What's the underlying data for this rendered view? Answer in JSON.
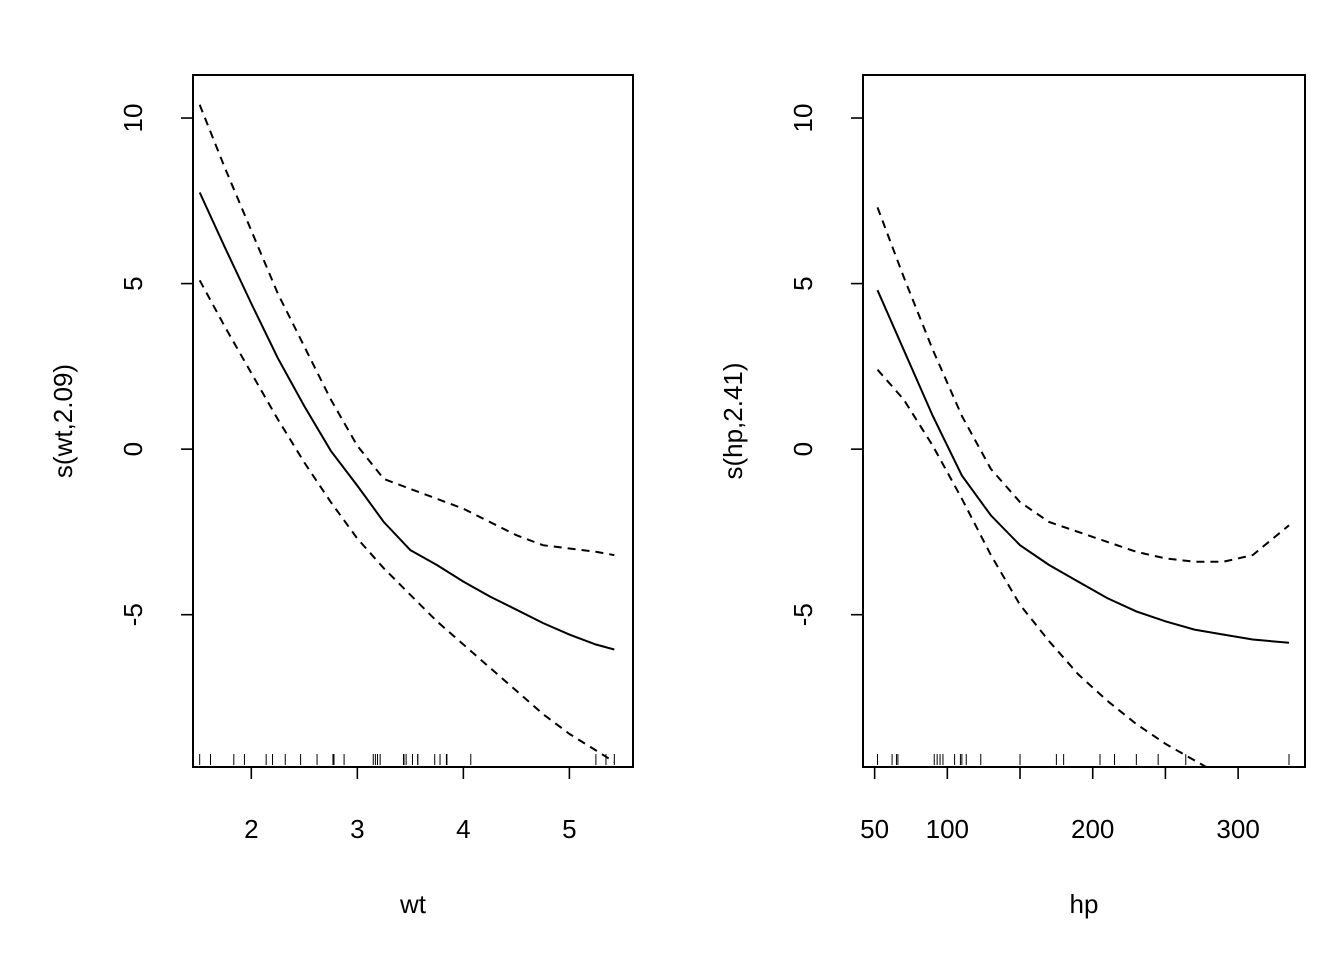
{
  "chart_data": [
    {
      "type": "line",
      "xlabel": "wt",
      "ylabel": "s(wt,2.09)",
      "xlim": [
        1.45,
        5.6
      ],
      "ylim": [
        -9.6,
        11.3
      ],
      "xticks": [
        2,
        3,
        4,
        5
      ],
      "yticks": [
        10,
        5,
        0,
        -5
      ],
      "ytick_labels": [
        "10",
        "5",
        "0",
        "-5"
      ],
      "grid": false,
      "series": [
        {
          "role": "fit",
          "style": "solid",
          "x": [
            1.513,
            1.75,
            2.0,
            2.25,
            2.5,
            2.75,
            3.0,
            3.25,
            3.5,
            3.75,
            4.0,
            4.25,
            4.5,
            4.75,
            5.0,
            5.25,
            5.424
          ],
          "y": [
            7.75,
            6.1,
            4.4,
            2.75,
            1.3,
            -0.05,
            -1.1,
            -2.2,
            -3.05,
            -3.5,
            -4.0,
            -4.45,
            -4.85,
            -5.25,
            -5.6,
            -5.9,
            -6.05
          ]
        },
        {
          "role": "upper",
          "style": "dashed",
          "x": [
            1.513,
            1.75,
            2.0,
            2.25,
            2.5,
            2.75,
            3.0,
            3.25,
            3.5,
            3.75,
            4.0,
            4.25,
            4.5,
            4.75,
            5.0,
            5.25,
            5.424
          ],
          "y": [
            10.4,
            8.5,
            6.6,
            4.7,
            3.1,
            1.5,
            0.1,
            -0.9,
            -1.2,
            -1.5,
            -1.8,
            -2.2,
            -2.6,
            -2.9,
            -3.0,
            -3.1,
            -3.2
          ]
        },
        {
          "role": "lower",
          "style": "dashed",
          "x": [
            1.513,
            1.75,
            2.0,
            2.25,
            2.5,
            2.75,
            3.0,
            3.25,
            3.5,
            3.75,
            4.0,
            4.25,
            4.5,
            4.75,
            5.0,
            5.25,
            5.424
          ],
          "y": [
            5.1,
            3.7,
            2.3,
            0.9,
            -0.4,
            -1.6,
            -2.7,
            -3.6,
            -4.4,
            -5.2,
            -5.9,
            -6.6,
            -7.3,
            -8.0,
            -8.6,
            -9.1,
            -9.45
          ]
        }
      ],
      "rug": [
        1.513,
        1.615,
        1.835,
        1.935,
        2.14,
        2.2,
        2.32,
        2.465,
        2.62,
        2.77,
        2.78,
        2.875,
        3.15,
        3.17,
        3.19,
        3.215,
        3.435,
        3.44,
        3.44,
        3.44,
        3.46,
        3.52,
        3.57,
        3.57,
        3.73,
        3.78,
        3.84,
        3.845,
        4.07,
        5.25,
        5.345,
        5.424
      ]
    },
    {
      "type": "line",
      "xlabel": "hp",
      "ylabel": "s(hp,2.41)",
      "xlim": [
        42,
        346
      ],
      "ylim": [
        -9.6,
        11.3
      ],
      "xticks": [
        50,
        100,
        150,
        200,
        250,
        300
      ],
      "xtick_labels": [
        "50",
        "100",
        "",
        "200",
        "",
        "300"
      ],
      "yticks": [
        10,
        5,
        0,
        -5
      ],
      "ytick_labels": [
        "10",
        "5",
        "0",
        "-5"
      ],
      "grid": false,
      "series": [
        {
          "role": "fit",
          "style": "solid",
          "x": [
            52,
            70,
            90,
            110,
            130,
            150,
            170,
            190,
            210,
            230,
            250,
            270,
            290,
            310,
            335
          ],
          "y": [
            4.8,
            3.0,
            1.0,
            -0.8,
            -2.0,
            -2.9,
            -3.5,
            -4.0,
            -4.5,
            -4.9,
            -5.2,
            -5.45,
            -5.6,
            -5.75,
            -5.85
          ]
        },
        {
          "role": "upper",
          "style": "dashed",
          "x": [
            52,
            70,
            90,
            110,
            130,
            150,
            170,
            190,
            210,
            230,
            250,
            270,
            290,
            310,
            335
          ],
          "y": [
            7.3,
            5.2,
            3.0,
            1.0,
            -0.6,
            -1.6,
            -2.2,
            -2.5,
            -2.8,
            -3.1,
            -3.3,
            -3.4,
            -3.4,
            -3.2,
            -2.3
          ]
        },
        {
          "role": "lower",
          "style": "dashed",
          "x": [
            52,
            70,
            90,
            110,
            130,
            150,
            170,
            190,
            210,
            230,
            250,
            270,
            290,
            310,
            335
          ],
          "y": [
            2.4,
            1.5,
            0.1,
            -1.5,
            -3.2,
            -4.7,
            -5.8,
            -6.8,
            -7.6,
            -8.3,
            -8.9,
            -9.4,
            -9.9,
            -10.4,
            -11.5
          ]
        }
      ],
      "rug": [
        52,
        62,
        65,
        66,
        91,
        93,
        95,
        97,
        105,
        109,
        110,
        113,
        123,
        150,
        175,
        180,
        205,
        215,
        230,
        245,
        264,
        335
      ]
    }
  ]
}
